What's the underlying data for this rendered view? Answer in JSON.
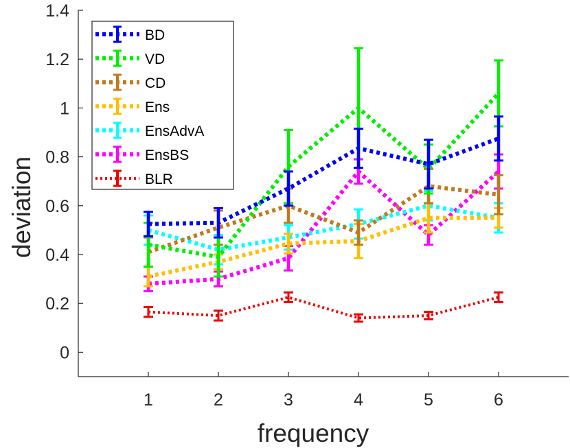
{
  "chart_data": {
    "type": "line",
    "xlabel": "frequency",
    "ylabel": "deviation",
    "xlim": [
      0,
      7
    ],
    "ylim": [
      -0.1,
      1.4
    ],
    "x": [
      1,
      2,
      3,
      4,
      5,
      6
    ],
    "xticks": [
      "1",
      "2",
      "3",
      "4",
      "5",
      "6"
    ],
    "yticks": [
      "0",
      "0.2",
      "0.4",
      "0.6",
      "0.8",
      "1",
      "1.2",
      "1.4"
    ],
    "grid": false,
    "legend_position": "top-left",
    "series": [
      {
        "name": "BD",
        "color": "#0000ff",
        "style": "dotted-thick",
        "values": [
          0.525,
          0.53,
          0.67,
          0.835,
          0.77,
          0.875
        ],
        "errors": [
          0.05,
          0.06,
          0.07,
          0.08,
          0.1,
          0.09
        ]
      },
      {
        "name": "VD",
        "color": "#00ee00",
        "style": "dotted-thick",
        "values": [
          0.44,
          0.39,
          0.76,
          1.0,
          0.75,
          1.06
        ],
        "errors": [
          0.09,
          0.08,
          0.15,
          0.245,
          0.1,
          0.135
        ]
      },
      {
        "name": "CD",
        "color": "#c07a1e",
        "style": "dotted-thick",
        "values": [
          0.41,
          0.51,
          0.6,
          0.49,
          0.68,
          0.645
        ],
        "errors": [
          0.06,
          0.07,
          0.07,
          0.05,
          0.07,
          0.08
        ]
      },
      {
        "name": "Ens",
        "color": "#ffbf00",
        "style": "dotted-thick",
        "values": [
          0.31,
          0.37,
          0.445,
          0.455,
          0.55,
          0.55
        ],
        "errors": [
          0.04,
          0.03,
          0.04,
          0.07,
          0.06,
          0.04
        ]
      },
      {
        "name": "EnsAdvA",
        "color": "#00ffff",
        "style": "dotted-thick",
        "values": [
          0.5,
          0.42,
          0.47,
          0.525,
          0.6,
          0.55
        ],
        "errors": [
          0.06,
          0.06,
          0.05,
          0.06,
          0.06,
          0.06
        ]
      },
      {
        "name": "EnsBS",
        "color": "#ff00ff",
        "style": "dotted-thick",
        "values": [
          0.28,
          0.3,
          0.385,
          0.74,
          0.48,
          0.74
        ],
        "errors": [
          0.03,
          0.03,
          0.05,
          0.05,
          0.04,
          0.07
        ]
      },
      {
        "name": "BLR",
        "color": "#ee0000",
        "style": "dotted-thin",
        "values": [
          0.165,
          0.15,
          0.225,
          0.14,
          0.15,
          0.225
        ],
        "errors": [
          0.02,
          0.02,
          0.02,
          0.015,
          0.015,
          0.02
        ]
      }
    ]
  }
}
